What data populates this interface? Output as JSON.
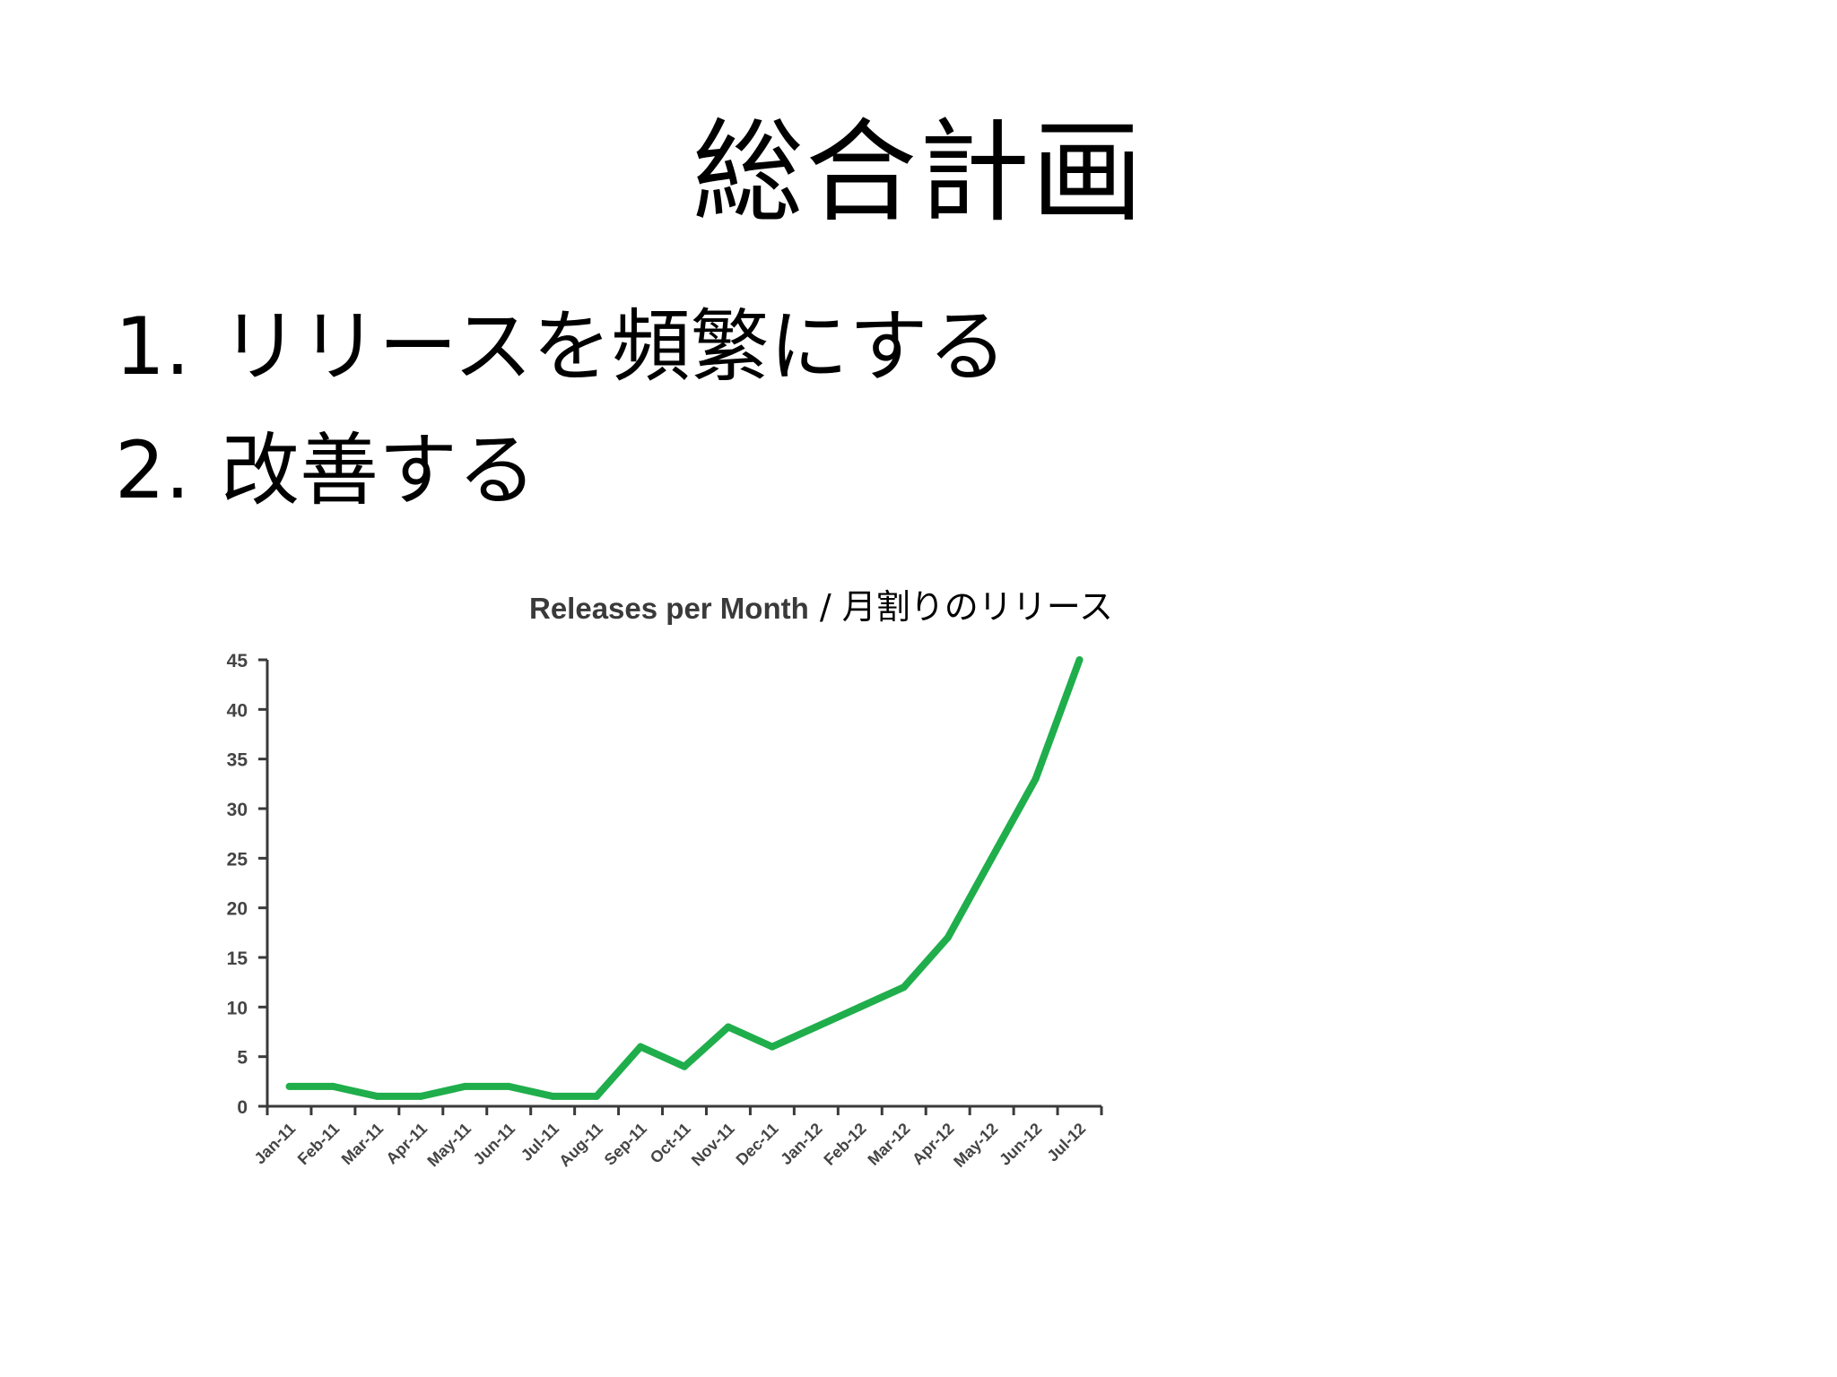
{
  "slide": {
    "title": "総合計画",
    "bullets": [
      {
        "number": "1.",
        "text": "リリースを頻繁にする"
      },
      {
        "number": "2.",
        "text": "改善する"
      }
    ]
  },
  "chart_data": {
    "type": "line",
    "title": "Releases per Month",
    "title_separator": " / ",
    "title_translation": "月割りのリリース",
    "categories": [
      "Jan-11",
      "Feb-11",
      "Mar-11",
      "Apr-11",
      "May-11",
      "Jun-11",
      "Jul-11",
      "Aug-11",
      "Sep-11",
      "Oct-11",
      "Nov-11",
      "Dec-11",
      "Jan-12",
      "Feb-12",
      "Mar-12",
      "Apr-12",
      "May-12",
      "Jun-12",
      "Jul-12"
    ],
    "series": [
      {
        "values": [
          2,
          2,
          1,
          1,
          2,
          2,
          1,
          1,
          6,
          4,
          8,
          6,
          8,
          10,
          12,
          17,
          25,
          33,
          45
        ],
        "color": "#1fae4b"
      }
    ],
    "ylim": [
      0,
      45
    ],
    "yticks": [
      0,
      5,
      10,
      15,
      20,
      25,
      30,
      35,
      40,
      45
    ],
    "grid": false,
    "legend": "none",
    "axis_color": "#3a3a3a"
  }
}
